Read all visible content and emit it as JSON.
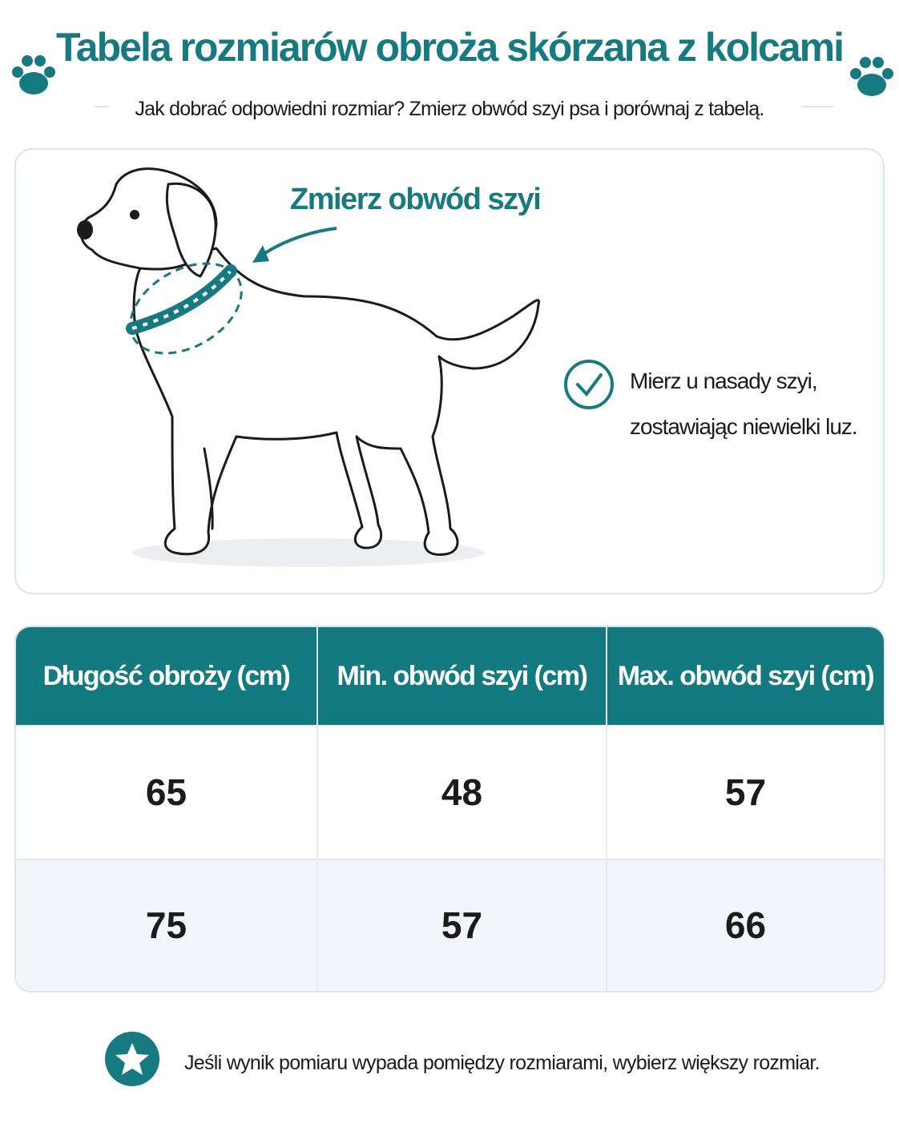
{
  "header": {
    "title": "Tabela rozmiarów obroża skórzana z kolcami",
    "subtitle": "Jak dobrać odpowiedni rozmiar? Zmierz obwód szyi psa i porównaj z tabelą."
  },
  "illustration": {
    "label": "Zmierz obwód szyi",
    "tip": [
      "Mierz u nasady szyi,",
      "zostawiając niewielki luz."
    ]
  },
  "table": {
    "headers": [
      "Długość obroży (cm)",
      "Min. obwód szyi (cm)",
      "Max. obwód szyi (cm)"
    ],
    "rows": [
      [
        65,
        48,
        57
      ],
      [
        75,
        57,
        66
      ]
    ]
  },
  "footer": {
    "note": "Jeśli wynik pomiaru wypada pomiędzy rozmiarami, wybierz większy rozmiar."
  }
}
